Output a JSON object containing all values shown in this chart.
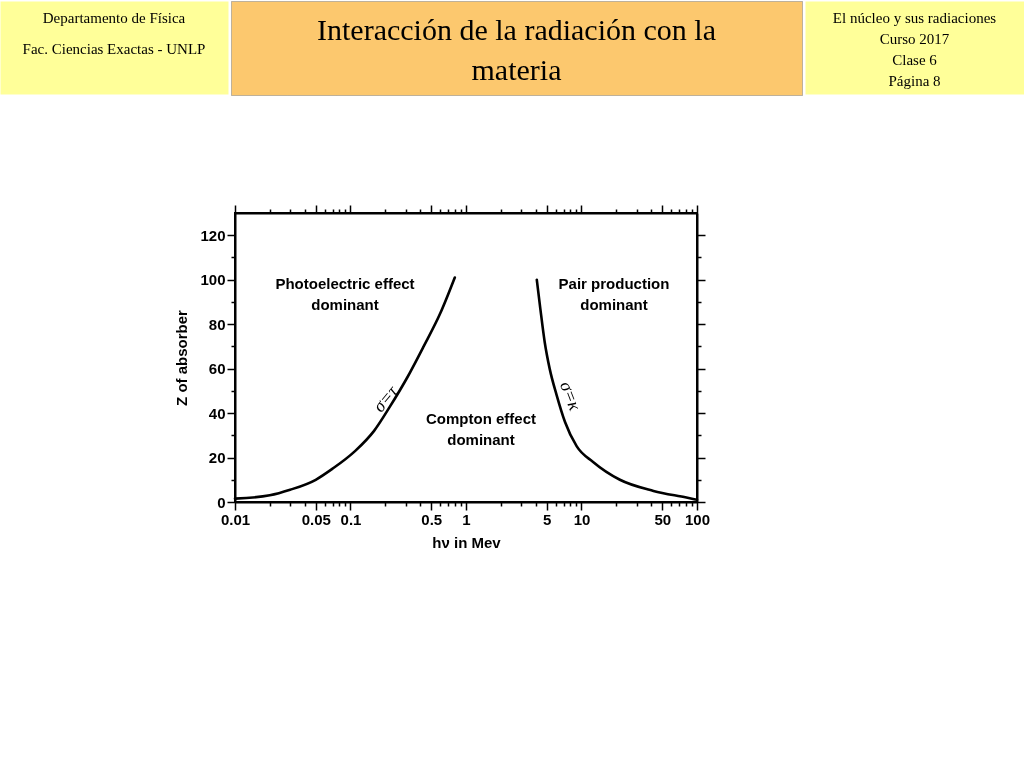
{
  "chart_data": {
    "type": "line",
    "title": "Interacción de la radiación con la materia",
    "xlabel": "hν in Mev",
    "ylabel": "Z of absorber",
    "log": "x",
    "xlim": [
      0.01,
      100
    ],
    "ylim": [
      0,
      130
    ],
    "xticks": [
      0.01,
      {
        "value": 0.02,
        "label": null
      },
      {
        "value": 0.03,
        "label": null
      },
      {
        "value": 0.04,
        "label": null
      },
      0.05,
      {
        "value": 0.06,
        "label": null
      },
      {
        "value": 0.07,
        "label": null
      },
      {
        "value": 0.08,
        "label": null
      },
      {
        "value": 0.09,
        "label": null
      },
      0.1,
      {
        "value": 0.2,
        "label": null
      },
      {
        "value": 0.3,
        "label": null
      },
      {
        "value": 0.4,
        "label": null
      },
      0.5,
      {
        "value": 0.6,
        "label": null
      },
      {
        "value": 0.7,
        "label": null
      },
      {
        "value": 0.8,
        "label": null
      },
      {
        "value": 0.9,
        "label": null
      },
      1,
      {
        "value": 2,
        "label": null
      },
      {
        "value": 3,
        "label": null
      },
      {
        "value": 4,
        "label": null
      },
      5,
      {
        "value": 6,
        "label": null
      },
      {
        "value": 7,
        "label": null
      },
      {
        "value": 8,
        "label": null
      },
      {
        "value": 9,
        "label": null
      },
      10,
      {
        "value": 20,
        "label": null
      },
      {
        "value": 30,
        "label": null
      },
      {
        "value": 40,
        "label": null
      },
      50,
      {
        "value": 60,
        "label": null
      },
      {
        "value": 70,
        "label": null
      },
      {
        "value": 80,
        "label": null
      },
      {
        "value": 90,
        "label": null
      },
      100
    ],
    "yticks": [
      0,
      {
        "value": 10,
        "label": null
      },
      20,
      {
        "value": 30,
        "label": null
      },
      40,
      {
        "value": 50,
        "label": null
      },
      60,
      {
        "value": 70,
        "label": null
      },
      80,
      {
        "value": 90,
        "label": null
      },
      100,
      {
        "value": 110,
        "label": null
      },
      120
    ],
    "series": [
      {
        "name": "σ=τ",
        "color": "#000000",
        "x": [
          0.01,
          0.02,
          0.03,
          0.05,
          0.07,
          0.11,
          0.16,
          0.22,
          0.31,
          0.43,
          0.6,
          0.8
        ],
        "values": [
          1.5,
          3,
          5.5,
          10,
          15,
          23,
          32,
          43,
          56,
          70,
          85,
          101
        ]
      },
      {
        "name": "σ=κ",
        "color": "#000000",
        "x": [
          4.1,
          4.4,
          4.8,
          5.3,
          6.1,
          7.2,
          9.1,
          12.6,
          21.5,
          42,
          81,
          100
        ],
        "values": [
          100,
          87,
          72,
          60,
          48,
          36,
          25,
          18,
          10,
          5,
          2,
          1
        ]
      }
    ],
    "annotations": [
      "Departamento de Física",
      "Fac. Ciencias Exactas - UNLP",
      "El núcleo y sus radiaciones",
      "Curso 2017",
      "Clase 6",
      "Página 8",
      "Photoelectric effect dominant",
      "Pair production dominant",
      "Compton effect dominant"
    ]
  }
}
